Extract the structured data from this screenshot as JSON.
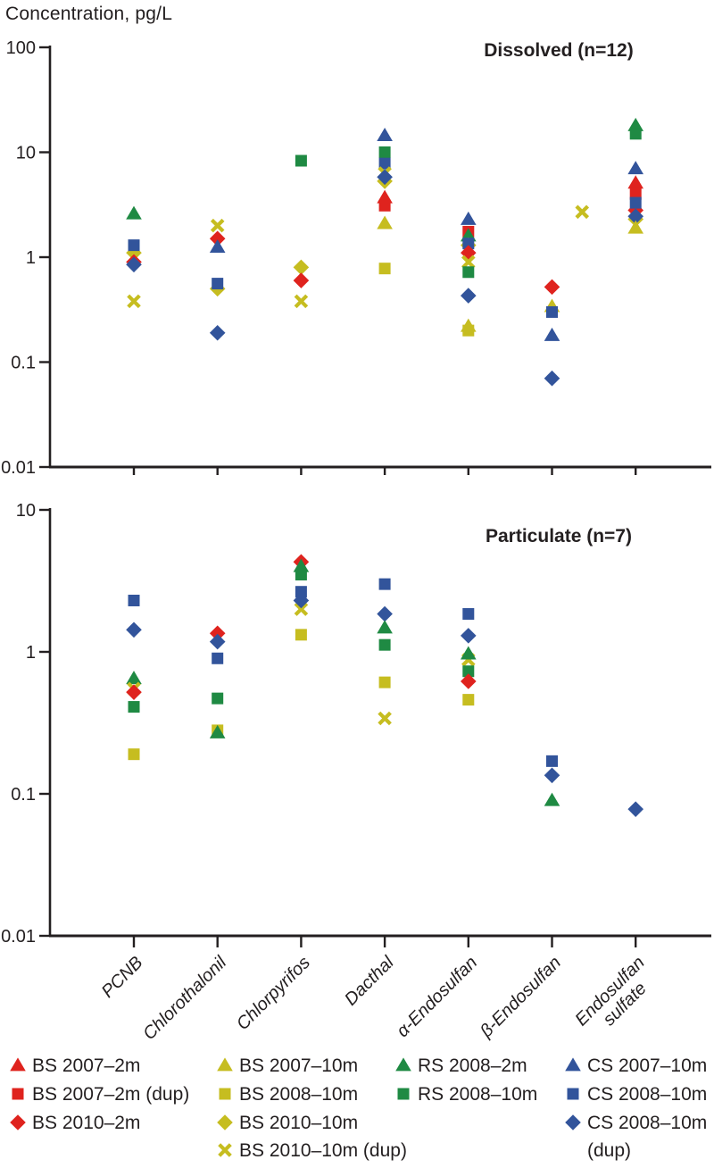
{
  "header": {
    "y_axis_title": "Concentration, pg/L"
  },
  "colors": {
    "red": "#df231e",
    "yellow": "#c6bd20",
    "green": "#1f8a43",
    "blue": "#32549b",
    "axis": "#231f20"
  },
  "categories": [
    "PCNB",
    "Chlorothalonil",
    "Chlorpyrifos",
    "Dacthal",
    "α-Endosulfan",
    "β-Endosulfan",
    "Endosulfan\nsulfate"
  ],
  "series": {
    "bs2007_2m": {
      "label": "BS 2007–2m",
      "marker": "triangle",
      "color": "red"
    },
    "bs2007_2m_dup": {
      "label": "BS 2007–2m (dup)",
      "marker": "square",
      "color": "red"
    },
    "bs2010_2m": {
      "label": "BS 2010–2m",
      "marker": "diamond",
      "color": "red"
    },
    "bs2007_10m": {
      "label": "BS 2007–10m",
      "marker": "triangle",
      "color": "yellow"
    },
    "bs2008_10m": {
      "label": "BS 2008–10m",
      "marker": "square",
      "color": "yellow"
    },
    "bs2010_10m": {
      "label": "BS 2010–10m",
      "marker": "diamond",
      "color": "yellow"
    },
    "bs2010_10m_dup": {
      "label": "BS 2010–10m (dup)",
      "marker": "xmark",
      "color": "yellow"
    },
    "rs2008_2m": {
      "label": "RS 2008–2m",
      "marker": "triangle",
      "color": "green"
    },
    "rs2008_10m": {
      "label": "RS 2008–10m",
      "marker": "square",
      "color": "green"
    },
    "cs2007_10m": {
      "label": "CS 2007–10m",
      "marker": "triangle",
      "color": "blue"
    },
    "cs2008_10m": {
      "label": "CS 2008–10m",
      "marker": "square",
      "color": "blue"
    },
    "cs2008_10m_dup": {
      "label": "CS 2008–10m (dup)",
      "marker": "diamond",
      "color": "blue"
    }
  },
  "chart_data": [
    {
      "type": "scatter",
      "title": "Dissolved (n=12)",
      "y_scale": "log",
      "ylim": [
        0.01,
        100
      ],
      "yticks": [
        "100",
        "10",
        "1",
        "0.1",
        "0.01"
      ],
      "xlabel": "",
      "ylabel": "Concentration, pg/L",
      "points": [
        {
          "cat": 0,
          "s": "rs2008_2m",
          "v": 2.6
        },
        {
          "cat": 0,
          "s": "bs2010_10m",
          "v": 1.1
        },
        {
          "cat": 0,
          "s": "cs2008_10m",
          "v": 1.3
        },
        {
          "cat": 0,
          "s": "bs2010_2m",
          "v": 0.9
        },
        {
          "cat": 0,
          "s": "cs2008_10m_dup",
          "v": 0.85
        },
        {
          "cat": 0,
          "s": "bs2010_10m_dup",
          "v": 0.38
        },
        {
          "cat": 1,
          "s": "bs2010_10m_dup",
          "v": 2.0
        },
        {
          "cat": 1,
          "s": "bs2010_2m",
          "v": 1.5
        },
        {
          "cat": 1,
          "s": "cs2007_10m",
          "v": 1.25
        },
        {
          "cat": 1,
          "s": "bs2010_10m",
          "v": 0.5
        },
        {
          "cat": 1,
          "s": "cs2008_10m",
          "v": 0.56
        },
        {
          "cat": 1,
          "s": "cs2008_10m_dup",
          "v": 0.19
        },
        {
          "cat": 2,
          "s": "rs2008_10m",
          "v": 8.3
        },
        {
          "cat": 2,
          "s": "bs2010_10m",
          "v": 0.8
        },
        {
          "cat": 2,
          "s": "bs2010_2m",
          "v": 0.6
        },
        {
          "cat": 2,
          "s": "bs2010_10m_dup",
          "v": 0.38
        },
        {
          "cat": 3,
          "s": "cs2007_10m",
          "v": 14.5
        },
        {
          "cat": 3,
          "s": "rs2008_10m",
          "v": 10
        },
        {
          "cat": 3,
          "s": "cs2008_10m",
          "v": 7.8
        },
        {
          "cat": 3,
          "s": "bs2010_10m_dup",
          "v": 6.3
        },
        {
          "cat": 3,
          "s": "bs2010_10m",
          "v": 5.3
        },
        {
          "cat": 3,
          "s": "cs2008_10m_dup",
          "v": 5.8
        },
        {
          "cat": 3,
          "s": "bs2007_2m",
          "v": 3.7
        },
        {
          "cat": 3,
          "s": "bs2007_2m_dup",
          "v": 3.1
        },
        {
          "cat": 3,
          "s": "bs2007_10m",
          "v": 2.1
        },
        {
          "cat": 3,
          "s": "bs2008_10m",
          "v": 0.78
        },
        {
          "cat": 4,
          "s": "cs2007_10m",
          "v": 2.3
        },
        {
          "cat": 4,
          "s": "bs2007_2m_dup",
          "v": 1.75
        },
        {
          "cat": 4,
          "s": "rs2008_2m",
          "v": 1.6
        },
        {
          "cat": 4,
          "s": "bs2010_10m",
          "v": 1.3
        },
        {
          "cat": 4,
          "s": "cs2008_10m",
          "v": 1.35
        },
        {
          "cat": 4,
          "s": "bs2010_2m",
          "v": 1.1
        },
        {
          "cat": 4,
          "s": "bs2010_10m_dup",
          "v": 0.9
        },
        {
          "cat": 4,
          "s": "rs2008_10m",
          "v": 0.72
        },
        {
          "cat": 4,
          "s": "cs2008_10m_dup",
          "v": 0.43
        },
        {
          "cat": 4,
          "s": "bs2007_10m",
          "v": 0.22
        },
        {
          "cat": 4,
          "s": "bs2008_10m",
          "v": 0.2
        },
        {
          "cat": 5,
          "s": "bs2010_2m",
          "v": 0.52
        },
        {
          "cat": 5,
          "s": "bs2007_10m",
          "v": 0.34
        },
        {
          "cat": 5,
          "s": "cs2008_10m",
          "v": 0.3
        },
        {
          "cat": 5,
          "s": "cs2007_10m",
          "v": 0.18
        },
        {
          "cat": 5,
          "s": "cs2008_10m_dup",
          "v": 0.07
        },
        {
          "cat": 6,
          "s": "rs2008_2m",
          "v": 18
        },
        {
          "cat": 6,
          "s": "rs2008_10m",
          "v": 15
        },
        {
          "cat": 6,
          "s": "cs2007_10m",
          "v": 7
        },
        {
          "cat": 6,
          "s": "bs2007_2m",
          "v": 5.1
        },
        {
          "cat": 6,
          "s": "bs2007_2m_dup",
          "v": 4.0
        },
        {
          "cat": 6,
          "s": "bs2010_2m",
          "v": 2.8
        },
        {
          "cat": 6,
          "s": "cs2008_10m",
          "v": 3.3
        },
        {
          "cat": 6,
          "s": "bs2010_10m",
          "v": 2.3
        },
        {
          "cat": 6,
          "s": "cs2008_10m_dup",
          "v": 2.45
        },
        {
          "cat": 6,
          "s": "bs2007_10m",
          "v": 1.9
        },
        {
          "cat": 6,
          "s": "bs2010_10m_dup",
          "v": 2.7,
          "xoff": -0.64
        }
      ]
    },
    {
      "type": "scatter",
      "title": "Particulate (n=7)",
      "y_scale": "log",
      "ylim": [
        0.01,
        10
      ],
      "yticks": [
        "10",
        "1",
        "0.1",
        "0.01"
      ],
      "xlabel": "",
      "ylabel": "Concentration, pg/L",
      "points": [
        {
          "cat": 0,
          "s": "cs2008_10m",
          "v": 2.3
        },
        {
          "cat": 0,
          "s": "cs2008_10m_dup",
          "v": 1.43
        },
        {
          "cat": 0,
          "s": "rs2008_2m",
          "v": 0.65
        },
        {
          "cat": 0,
          "s": "bs2010_10m_dup",
          "v": 0.55
        },
        {
          "cat": 0,
          "s": "bs2010_2m",
          "v": 0.52
        },
        {
          "cat": 0,
          "s": "rs2008_10m",
          "v": 0.41
        },
        {
          "cat": 0,
          "s": "bs2008_10m",
          "v": 0.19
        },
        {
          "cat": 1,
          "s": "bs2010_2m",
          "v": 1.35
        },
        {
          "cat": 1,
          "s": "cs2008_10m_dup",
          "v": 1.18
        },
        {
          "cat": 1,
          "s": "cs2008_10m",
          "v": 0.9
        },
        {
          "cat": 1,
          "s": "rs2008_10m",
          "v": 0.47
        },
        {
          "cat": 1,
          "s": "bs2008_10m",
          "v": 0.28
        },
        {
          "cat": 1,
          "s": "rs2008_2m",
          "v": 0.27
        },
        {
          "cat": 2,
          "s": "bs2010_2m",
          "v": 4.3
        },
        {
          "cat": 2,
          "s": "rs2008_2m",
          "v": 4.0
        },
        {
          "cat": 2,
          "s": "rs2008_10m",
          "v": 3.5
        },
        {
          "cat": 2,
          "s": "cs2008_10m",
          "v": 2.65
        },
        {
          "cat": 2,
          "s": "bs2010_10m_dup",
          "v": 2.0
        },
        {
          "cat": 2,
          "s": "cs2008_10m_dup",
          "v": 2.3
        },
        {
          "cat": 2,
          "s": "bs2008_10m",
          "v": 1.32
        },
        {
          "cat": 3,
          "s": "cs2008_10m",
          "v": 3.0
        },
        {
          "cat": 3,
          "s": "cs2008_10m_dup",
          "v": 1.85
        },
        {
          "cat": 3,
          "s": "rs2008_2m",
          "v": 1.48
        },
        {
          "cat": 3,
          "s": "rs2008_10m",
          "v": 1.12
        },
        {
          "cat": 3,
          "s": "bs2008_10m",
          "v": 0.61
        },
        {
          "cat": 3,
          "s": "bs2010_10m_dup",
          "v": 0.34
        },
        {
          "cat": 4,
          "s": "cs2008_10m",
          "v": 1.85
        },
        {
          "cat": 4,
          "s": "cs2008_10m_dup",
          "v": 1.3
        },
        {
          "cat": 4,
          "s": "bs2010_10m_dup",
          "v": 0.88
        },
        {
          "cat": 4,
          "s": "rs2008_2m",
          "v": 0.97
        },
        {
          "cat": 4,
          "s": "rs2008_10m",
          "v": 0.73
        },
        {
          "cat": 4,
          "s": "bs2010_2m",
          "v": 0.62
        },
        {
          "cat": 4,
          "s": "bs2008_10m",
          "v": 0.46
        },
        {
          "cat": 5,
          "s": "cs2008_10m",
          "v": 0.17
        },
        {
          "cat": 5,
          "s": "cs2008_10m_dup",
          "v": 0.135
        },
        {
          "cat": 5,
          "s": "rs2008_2m",
          "v": 0.09
        },
        {
          "cat": 6,
          "s": "cs2008_10m_dup",
          "v": 0.078
        }
      ]
    }
  ],
  "legend": {
    "columns": [
      [
        {
          "series": "bs2007_2m",
          "label": "BS 2007–2m"
        },
        {
          "series": "bs2007_2m_dup",
          "label": "BS 2007–2m (dup)"
        },
        {
          "series": "bs2010_2m",
          "label": "BS 2010–2m"
        }
      ],
      [
        {
          "series": "bs2007_10m",
          "label": "BS 2007–10m"
        },
        {
          "series": "bs2008_10m",
          "label": "BS 2008–10m"
        },
        {
          "series": "bs2010_10m",
          "label": "BS 2010–10m"
        },
        {
          "series": "bs2010_10m_dup",
          "label": "BS 2010–10m (dup)"
        }
      ],
      [
        {
          "series": "rs2008_2m",
          "label": "RS 2008–2m"
        },
        {
          "series": "rs2008_10m",
          "label": "RS 2008–10m"
        }
      ],
      [
        {
          "series": "cs2007_10m",
          "label": "CS 2007–10m"
        },
        {
          "series": "cs2008_10m",
          "label": "CS 2008–10m"
        },
        {
          "series": "cs2008_10m_dup",
          "label": "CS 2008–10m",
          "label2": "(dup)"
        }
      ]
    ]
  }
}
